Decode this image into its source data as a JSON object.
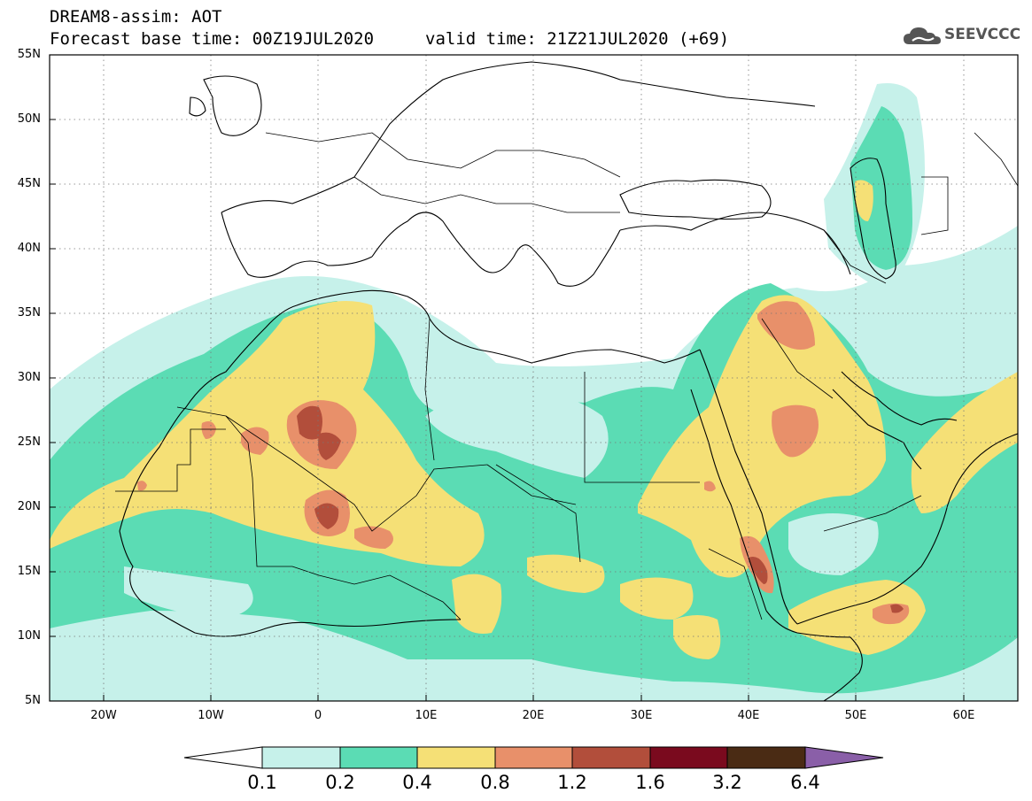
{
  "header": {
    "title_line1": "DREAM8-assim: AOT",
    "title_line2": "Forecast base time: 00Z19JUL2020",
    "valid_time": "valid time: 21Z21JUL2020 (+69)",
    "logo_text": "SEEVCCC"
  },
  "map": {
    "projection": "lat-lon",
    "lon_range": [
      -25,
      65
    ],
    "lat_range": [
      5,
      55
    ],
    "lat_labels": [
      "55N",
      "50N",
      "45N",
      "40N",
      "35N",
      "30N",
      "25N",
      "20N",
      "15N",
      "10N",
      "5N"
    ],
    "lon_labels": [
      "20W",
      "10W",
      "0",
      "10E",
      "20E",
      "30E",
      "40E",
      "50E",
      "60E"
    ]
  },
  "colorbar": {
    "labels": [
      "0.1",
      "0.2",
      "0.4",
      "0.8",
      "1.2",
      "1.6",
      "3.2",
      "6.4"
    ],
    "colors": [
      "#ffffff",
      "#c6f1ea",
      "#5bdcb4",
      "#f5e076",
      "#e8906a",
      "#b24e3b",
      "#7a0a1e",
      "#4a2b14",
      "#8a5fa8"
    ]
  }
}
